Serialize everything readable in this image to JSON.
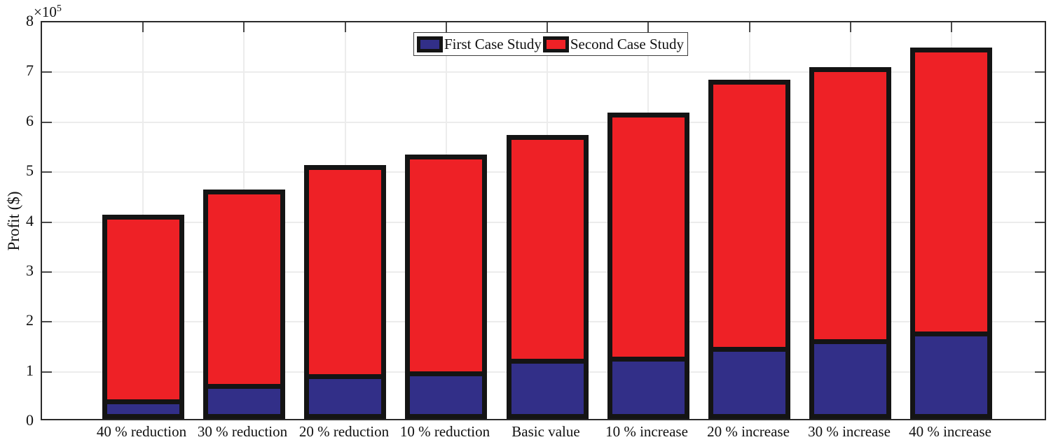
{
  "chart_data": {
    "type": "bar",
    "stacked": true,
    "title": "",
    "xlabel": "",
    "ylabel": "Profit ($)",
    "y_exponent_label": {
      "base": "×10",
      "exp": "5"
    },
    "ylim": [
      0,
      8
    ],
    "yticks": [
      0,
      1,
      2,
      3,
      4,
      5,
      6,
      7,
      8
    ],
    "grid": true,
    "legend_position": "top-center",
    "categories": [
      "40 % reduction",
      "30 % reduction",
      "20 % reduction",
      "10 % reduction",
      "Basic value",
      "10 % increase",
      "20 % increase",
      "30 % increase",
      "40 % increase"
    ],
    "series": [
      {
        "name": "First Case Study",
        "color": "#322f88",
        "values": [
          0.35,
          0.65,
          0.85,
          0.9,
          1.15,
          1.2,
          1.4,
          1.55,
          1.7
        ]
      },
      {
        "name": "Second Case Study",
        "color": "#ee2126",
        "values": [
          3.7,
          3.9,
          4.2,
          4.35,
          4.5,
          4.9,
          5.35,
          5.45,
          5.7
        ]
      }
    ],
    "stack_totals": [
      4.05,
      4.55,
      5.05,
      5.25,
      5.65,
      6.1,
      6.75,
      7.0,
      7.4
    ],
    "bar_edge_color": "#141414",
    "grid_color": "#ececec",
    "axis_color": "#2a2a2a"
  }
}
